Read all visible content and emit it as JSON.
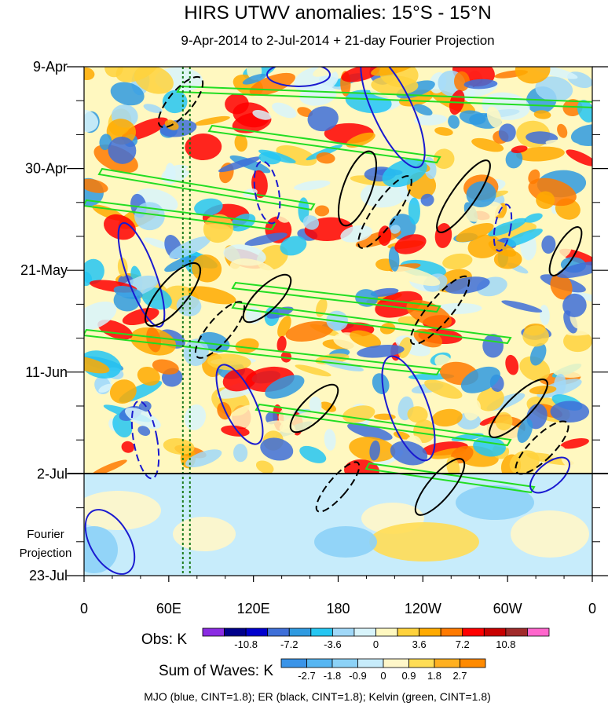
{
  "chart_data": {
    "type": "heatmap",
    "title": "HIRS UTWV anomalies: 15°S - 15°N",
    "subtitle": "9-Apr-2014 to 2-Jul-2014 + 21-day Fourier Projection",
    "x_ticks": [
      {
        "label": "0",
        "lon": 0
      },
      {
        "label": "60E",
        "lon": 60
      },
      {
        "label": "120E",
        "lon": 120
      },
      {
        "label": "180",
        "lon": 180
      },
      {
        "label": "120W",
        "lon": 240
      },
      {
        "label": "60W",
        "lon": 300
      },
      {
        "label": "0",
        "lon": 360
      }
    ],
    "xlim": [
      0,
      360
    ],
    "y_ticks": [
      {
        "label": "9-Apr",
        "day": 0
      },
      {
        "label": "30-Apr",
        "day": 21
      },
      {
        "label": "21-May",
        "day": 42
      },
      {
        "label": "11-Jun",
        "day": 63
      },
      {
        "label": "2-Jul",
        "day": 84
      },
      {
        "label": "23-Jul",
        "day": 105
      }
    ],
    "ylim": [
      0,
      105
    ],
    "projection_start_day": 84,
    "projection_label": [
      "Fourier",
      "Projection"
    ],
    "reference_lines_lon": [
      70,
      75
    ],
    "obs_colorbar": {
      "label": "Obs: K",
      "colors": [
        "#8a2be2",
        "#00008b",
        "#0000cd",
        "#3e6fd8",
        "#2f9ae0",
        "#25c6f2",
        "#a0d8f8",
        "#d8f4fb",
        "#fff8c0",
        "#ffd23c",
        "#ffaa00",
        "#ff7a00",
        "#ff0000",
        "#c80000",
        "#a02a2a",
        "#ff66cc"
      ],
      "tick_labels": [
        "-10.8",
        "-7.2",
        "-3.6",
        "0",
        "3.6",
        "7.2",
        "10.8"
      ]
    },
    "waves_colorbar": {
      "label": "Sum of Waves: K",
      "colors": [
        "#3a94e8",
        "#56b6f2",
        "#8cd2f7",
        "#c7ecfb",
        "#fff7c9",
        "#ffdd55",
        "#ffb020",
        "#ff8a00"
      ],
      "tick_labels": [
        "-2.7",
        "-1.8",
        "-0.9",
        "0",
        "0.9",
        "1.8",
        "2.7"
      ]
    },
    "contours": [
      {
        "name": "MJO",
        "color": "#1a1ad0"
      },
      {
        "name": "ER",
        "color": "#000000"
      },
      {
        "name": "Kelvin",
        "color": "#22dd22"
      }
    ],
    "footer": "MJO (blue, CINT=1.8); ER (black, CINT=1.8); Kelvin (green, CINT=1.8)"
  }
}
